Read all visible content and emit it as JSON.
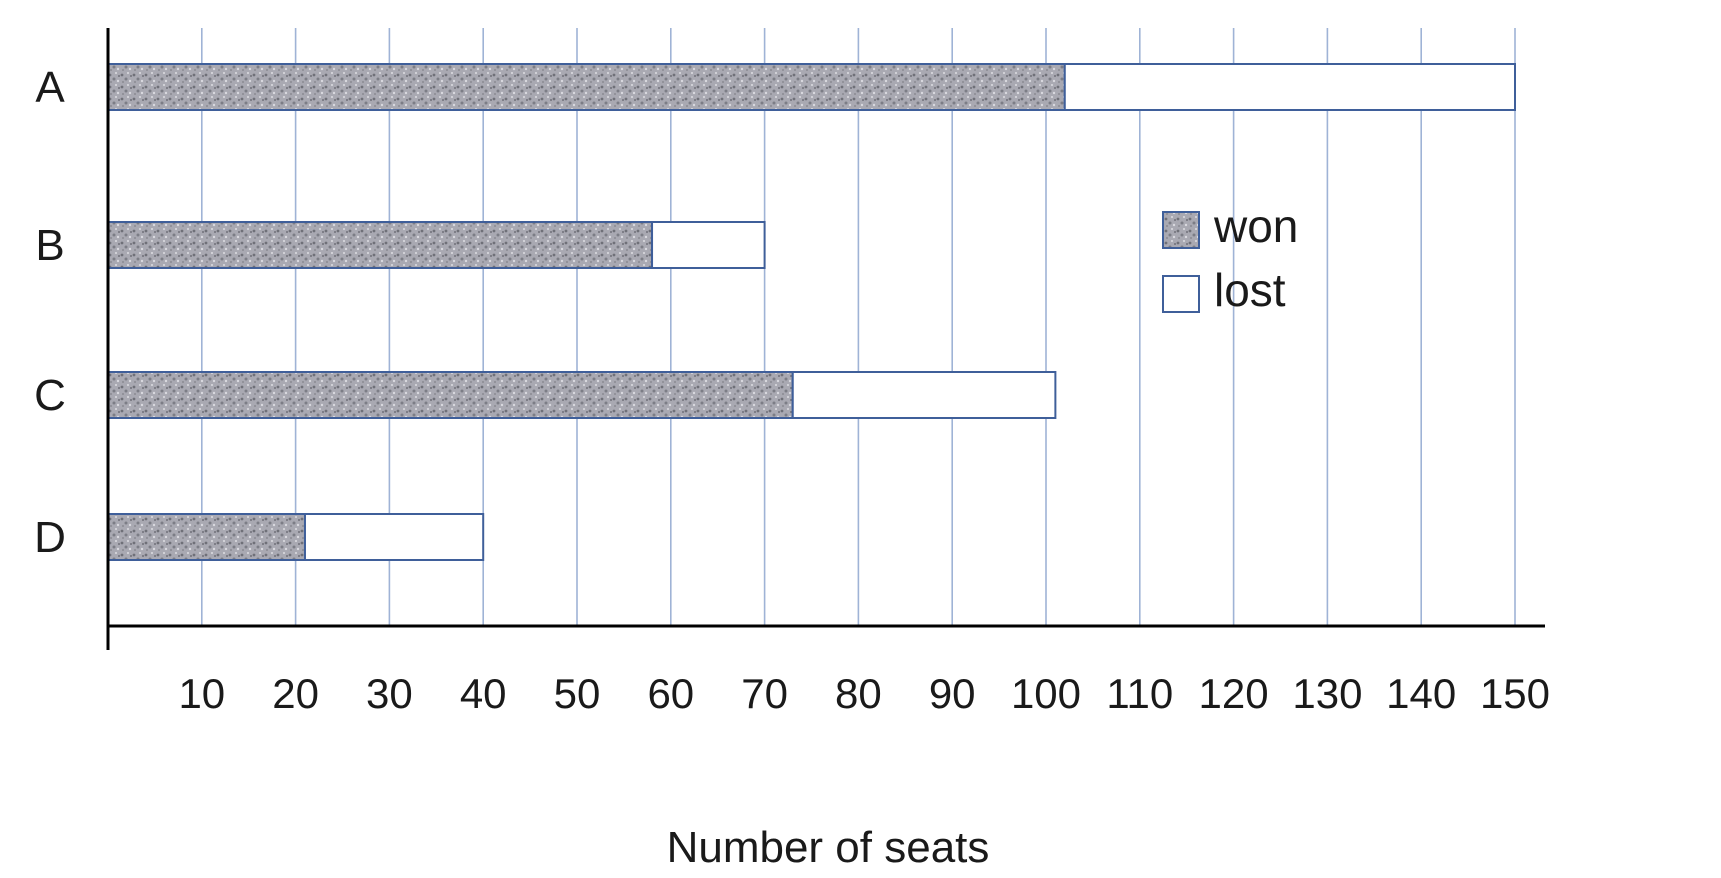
{
  "chart_data": {
    "type": "bar",
    "orientation": "horizontal",
    "stacked": true,
    "categories": [
      "A",
      "B",
      "C",
      "D"
    ],
    "series": [
      {
        "name": "won",
        "values": [
          102,
          58,
          73,
          21
        ]
      },
      {
        "name": "lost",
        "values": [
          48,
          12,
          28,
          19
        ]
      }
    ],
    "xlabel": "Number of seats",
    "ylabel": "",
    "title": "",
    "xlim": [
      0,
      150
    ],
    "xticks": [
      10,
      20,
      30,
      40,
      50,
      60,
      70,
      80,
      90,
      100,
      110,
      120,
      130,
      140,
      150
    ],
    "grid": "vertical",
    "legend": "right",
    "colors": {
      "won_fill": "#a8a8b0",
      "lost_fill": "#ffffff",
      "bar_edge": "#3f5f9a",
      "grid": "#9fb3d6",
      "axis": "#000000"
    }
  }
}
